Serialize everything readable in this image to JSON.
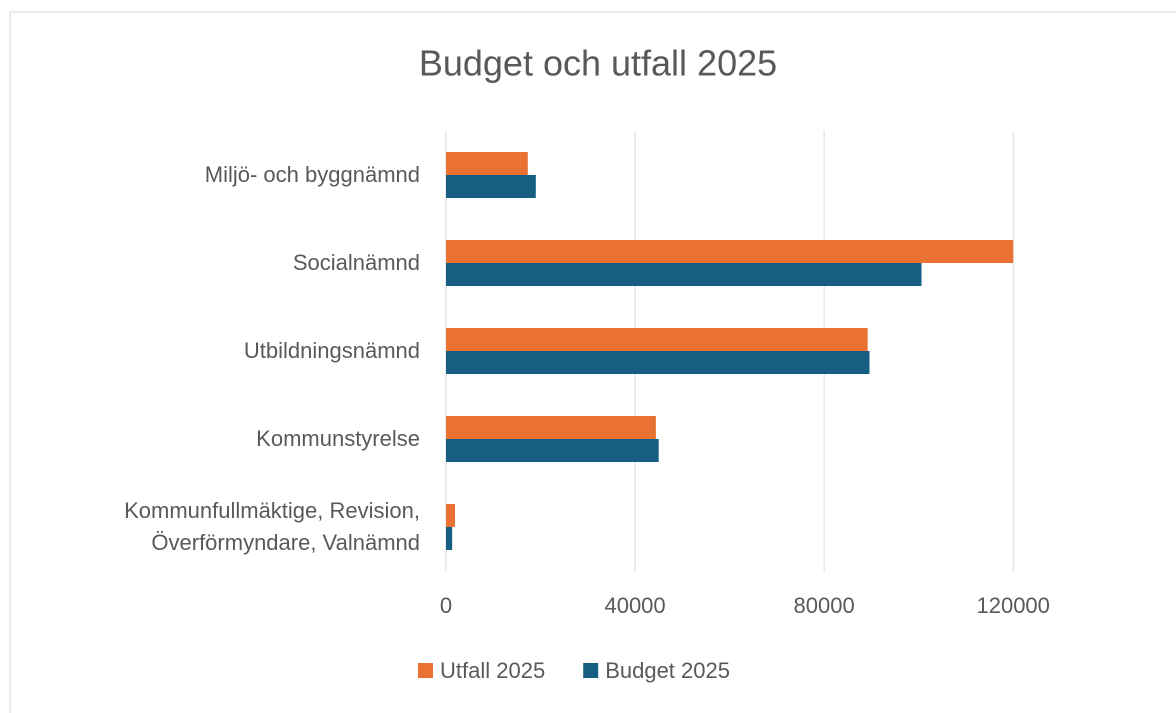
{
  "chart_data": {
    "type": "hbar",
    "title": "Budget och utfall 2025",
    "categories": [
      "Miljö- och byggnämnd",
      "Socialnämnd",
      "Utbildningsnämnd",
      "Kommunstyrelse",
      "Kommunfullmäktige, Revision, Överförmyndare, Valnämnd"
    ],
    "series": [
      {
        "name": "Utfall 2025",
        "color": "#e97132",
        "values": [
          17300,
          120000,
          89200,
          44400,
          1900
        ]
      },
      {
        "name": "Budget 2025",
        "color": "#156082",
        "values": [
          19000,
          100600,
          89600,
          45000,
          1300
        ]
      }
    ],
    "xlim": [
      0,
      150000
    ],
    "xticks": [
      0,
      40000,
      80000,
      120000
    ],
    "grid": true,
    "legend": "bottom"
  }
}
